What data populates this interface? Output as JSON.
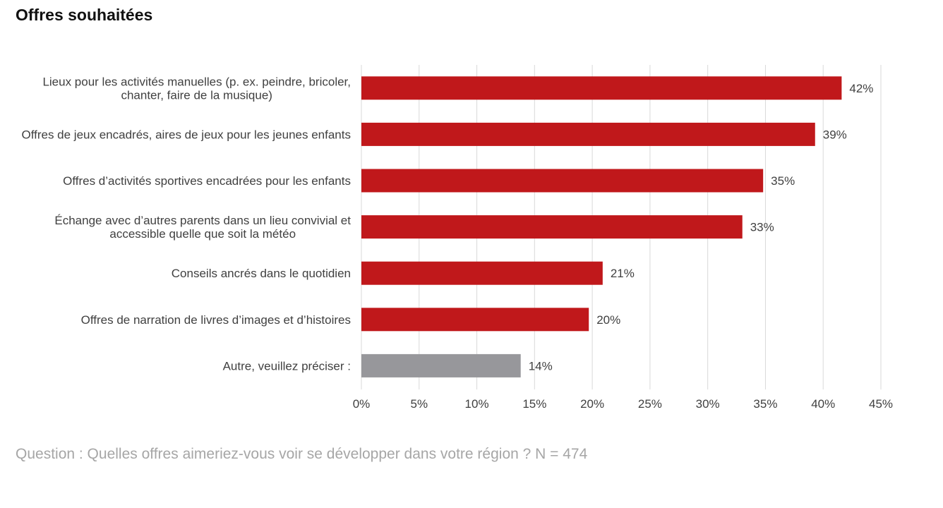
{
  "title": "Offres souhaitées",
  "footnote": "Question : Quelles offres aimeriez-vous voir se développer dans votre région ? N = 474",
  "colors": {
    "bar_primary": "#c0181b",
    "bar_other": "#97979b",
    "gridline": "#d9d9d9",
    "label_text": "#404040",
    "footnote_text": "#a6a6a6"
  },
  "chart_data": {
    "type": "bar",
    "orientation": "horizontal",
    "title": "Offres souhaitées",
    "xlabel": "",
    "ylabel": "",
    "xlim": [
      0,
      45
    ],
    "x_ticks": [
      0,
      5,
      10,
      15,
      20,
      25,
      30,
      35,
      40,
      45
    ],
    "x_tick_labels": [
      "0%",
      "5%",
      "10%",
      "15%",
      "20%",
      "25%",
      "30%",
      "35%",
      "40%",
      "45%"
    ],
    "grid": true,
    "categories": [
      [
        "Lieux pour les activités manuelles (p. ex. peindre, bricoler,",
        "chanter, faire de la musique)"
      ],
      [
        "Offres de jeux encadrés, aires de jeux pour les jeunes enfants"
      ],
      [
        "Offres d’activités sportives encadrées pour les enfants"
      ],
      [
        "Échange avec d’autres parents dans un lieu convivial et",
        "accessible quelle que soit la météo"
      ],
      [
        "Conseils ancrés dans le quotidien"
      ],
      [
        "Offres de narration de livres d’images et d’histoires"
      ],
      [
        "Autre, veuillez préciser :"
      ]
    ],
    "values": [
      41.6,
      39.3,
      34.8,
      33.0,
      20.9,
      19.7,
      13.8
    ],
    "value_labels": [
      "42%",
      "39%",
      "35%",
      "33%",
      "21%",
      "20%",
      "14%"
    ],
    "bar_colors": [
      "#c0181b",
      "#c0181b",
      "#c0181b",
      "#c0181b",
      "#c0181b",
      "#c0181b",
      "#97979b"
    ]
  }
}
